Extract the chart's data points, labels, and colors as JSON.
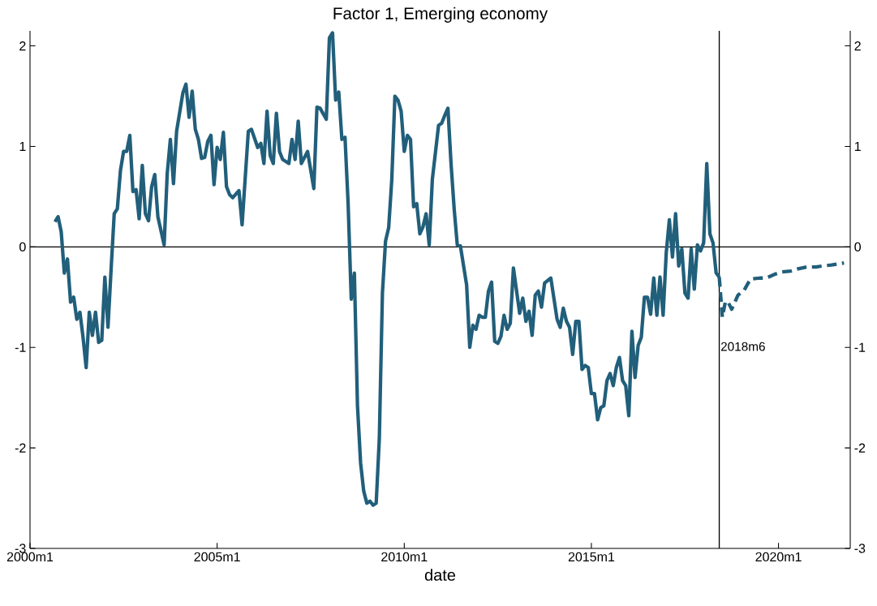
{
  "chart_data": {
    "type": "line",
    "title": "Factor 1, Emerging economy",
    "xlabel": "date",
    "xlim": [
      "2000-01",
      "2021-12"
    ],
    "ylim": [
      -3,
      2.15
    ],
    "y2lim": [
      -3,
      2.15
    ],
    "xticks": [
      {
        "value": "2000-01",
        "label": "2000m1"
      },
      {
        "value": "2005-01",
        "label": "2005m1"
      },
      {
        "value": "2010-01",
        "label": "2010m1"
      },
      {
        "value": "2015-01",
        "label": "2015m1"
      },
      {
        "value": "2020-01",
        "label": "2020m1"
      }
    ],
    "yticks": [
      -3,
      -2,
      -1,
      0,
      1,
      2
    ],
    "y2ticks": [
      -3,
      -2,
      -1,
      0,
      1,
      2
    ],
    "grid": false,
    "ref_lines": [
      {
        "axis": "y",
        "value": 0,
        "color": "#000000"
      },
      {
        "axis": "x",
        "value": "2018-06",
        "label": "2018m6",
        "color": "#000000"
      }
    ],
    "series": [
      {
        "color": "#215f7b",
        "line_style": "solid",
        "x": [
          "2000-09",
          "2000-10",
          "2000-11",
          "2000-12",
          "2001-01",
          "2001-02",
          "2001-03",
          "2001-04",
          "2001-05",
          "2001-06",
          "2001-07",
          "2001-08",
          "2001-09",
          "2001-10",
          "2001-11",
          "2001-12",
          "2002-01",
          "2002-02",
          "2002-03",
          "2002-04",
          "2002-05",
          "2002-06",
          "2002-07",
          "2002-08",
          "2002-09",
          "2002-10",
          "2002-11",
          "2002-12",
          "2003-01",
          "2003-02",
          "2003-03",
          "2003-04",
          "2003-05",
          "2003-06",
          "2003-08",
          "2003-09",
          "2003-10",
          "2003-11",
          "2003-12",
          "2004-01",
          "2004-02",
          "2004-03",
          "2004-04",
          "2004-05",
          "2004-06",
          "2004-07",
          "2004-08",
          "2004-09",
          "2004-10",
          "2004-11",
          "2004-12",
          "2005-01",
          "2005-02",
          "2005-03",
          "2005-04",
          "2005-05",
          "2005-06",
          "2005-08",
          "2005-09",
          "2005-11",
          "2005-12",
          "2006-02",
          "2006-03",
          "2006-04",
          "2006-05",
          "2006-06",
          "2006-07",
          "2006-08",
          "2006-09",
          "2006-10",
          "2006-12",
          "2007-01",
          "2007-02",
          "2007-03",
          "2007-04",
          "2007-06",
          "2007-08",
          "2007-09",
          "2007-10",
          "2007-12",
          "2008-01",
          "2008-02",
          "2008-03",
          "2008-04",
          "2008-05",
          "2008-06",
          "2008-07",
          "2008-08",
          "2008-09",
          "2008-10",
          "2008-11",
          "2008-12",
          "2009-01",
          "2009-02",
          "2009-03",
          "2009-04",
          "2009-05",
          "2009-06",
          "2009-07",
          "2009-08",
          "2009-09",
          "2009-10",
          "2009-11",
          "2009-12",
          "2010-01",
          "2010-02",
          "2010-03",
          "2010-04",
          "2010-05",
          "2010-06",
          "2010-07",
          "2010-08",
          "2010-09",
          "2010-10",
          "2010-12",
          "2011-01",
          "2011-02",
          "2011-03",
          "2011-04",
          "2011-05",
          "2011-06",
          "2011-07",
          "2011-09",
          "2011-10",
          "2011-11",
          "2011-12",
          "2012-01",
          "2012-02",
          "2012-03",
          "2012-04",
          "2012-05",
          "2012-06",
          "2012-07",
          "2012-08",
          "2012-09",
          "2012-10",
          "2012-11",
          "2012-12",
          "2013-02",
          "2013-03",
          "2013-04",
          "2013-05",
          "2013-06",
          "2013-07",
          "2013-08",
          "2013-09",
          "2013-10",
          "2013-12",
          "2014-02",
          "2014-03",
          "2014-04",
          "2014-05",
          "2014-06",
          "2014-07",
          "2014-08",
          "2014-09",
          "2014-10",
          "2014-11",
          "2014-12",
          "2015-01",
          "2015-02",
          "2015-03",
          "2015-04",
          "2015-05",
          "2015-06",
          "2015-07",
          "2015-08",
          "2015-09",
          "2015-10",
          "2015-11",
          "2015-12",
          "2016-01",
          "2016-02",
          "2016-03",
          "2016-04",
          "2016-05",
          "2016-06",
          "2016-07",
          "2016-08",
          "2016-09",
          "2016-10",
          "2016-11",
          "2016-12",
          "2017-01",
          "2017-02",
          "2017-03",
          "2017-04",
          "2017-05",
          "2017-06",
          "2017-07",
          "2017-08",
          "2017-09",
          "2017-10",
          "2017-11",
          "2017-12",
          "2018-01",
          "2018-02",
          "2018-03",
          "2018-04",
          "2018-05",
          "2018-06"
        ],
        "values": [
          0.25,
          0.3,
          0.15,
          -0.26,
          -0.12,
          -0.55,
          -0.5,
          -0.72,
          -0.65,
          -0.9,
          -1.2,
          -0.65,
          -0.88,
          -0.65,
          -0.95,
          -0.93,
          -0.3,
          -0.8,
          -0.22,
          0.33,
          0.38,
          0.76,
          0.95,
          0.95,
          1.11,
          0.55,
          0.57,
          0.28,
          0.81,
          0.33,
          0.26,
          0.6,
          0.72,
          0.3,
          0.02,
          0.73,
          1.07,
          0.63,
          1.15,
          1.34,
          1.53,
          1.62,
          1.29,
          1.55,
          1.17,
          1.07,
          0.88,
          0.89,
          1.05,
          1.11,
          0.62,
          0.99,
          0.87,
          1.14,
          0.6,
          0.52,
          0.49,
          0.56,
          0.22,
          1.15,
          1.17,
          0.99,
          1.03,
          0.83,
          1.35,
          0.91,
          0.83,
          1.33,
          0.95,
          0.87,
          0.83,
          1.07,
          0.87,
          1.25,
          0.83,
          0.95,
          0.58,
          1.39,
          1.38,
          1.27,
          2.08,
          2.13,
          1.46,
          1.54,
          1.07,
          1.09,
          0.43,
          -0.52,
          -0.26,
          -1.58,
          -2.15,
          -2.43,
          -2.55,
          -2.53,
          -2.57,
          -2.55,
          -1.91,
          -0.46,
          0.06,
          0.19,
          0.67,
          1.5,
          1.46,
          1.35,
          0.95,
          1.11,
          1.07,
          0.4,
          0.43,
          0.13,
          0.2,
          0.33,
          0.02,
          0.67,
          1.21,
          1.23,
          1.31,
          1.38,
          0.83,
          0.38,
          0.02,
          0.01,
          -0.38,
          -1.0,
          -0.78,
          -0.82,
          -0.68,
          -0.7,
          -0.7,
          -0.44,
          -0.35,
          -0.94,
          -0.96,
          -0.89,
          -0.68,
          -0.82,
          -0.76,
          -0.21,
          -0.66,
          -0.51,
          -0.74,
          -0.64,
          -0.88,
          -0.48,
          -0.44,
          -0.6,
          -0.36,
          -0.31,
          -0.72,
          -0.8,
          -0.61,
          -0.74,
          -0.8,
          -1.07,
          -0.74,
          -0.74,
          -1.22,
          -1.18,
          -1.2,
          -1.46,
          -1.46,
          -1.72,
          -1.6,
          -1.58,
          -1.33,
          -1.26,
          -1.38,
          -1.2,
          -1.1,
          -1.33,
          -1.38,
          -1.68,
          -0.84,
          -1.3,
          -0.98,
          -0.9,
          -0.5,
          -0.5,
          -0.67,
          -0.31,
          -0.68,
          -0.3,
          -0.68,
          -0.06,
          0.27,
          -0.1,
          0.33,
          -0.19,
          -0.02,
          -0.46,
          -0.51,
          -0.02,
          -0.42,
          0.02,
          -0.04,
          0.04,
          0.83,
          0.13,
          0.04,
          -0.26,
          -0.3
        ]
      },
      {
        "color": "#215f7b",
        "line_style": "dashed",
        "x": [
          "2018-06",
          "2018-07",
          "2018-08",
          "2018-09",
          "2018-10",
          "2018-12",
          "2019-02",
          "2019-04",
          "2019-07",
          "2019-09",
          "2019-12",
          "2020-02",
          "2020-05",
          "2020-07",
          "2020-10",
          "2021-01",
          "2021-03",
          "2021-06",
          "2021-10"
        ],
        "values": [
          -0.3,
          -0.7,
          -0.54,
          -0.56,
          -0.62,
          -0.48,
          -0.43,
          -0.32,
          -0.31,
          -0.31,
          -0.27,
          -0.25,
          -0.24,
          -0.22,
          -0.2,
          -0.2,
          -0.19,
          -0.18,
          -0.16
        ]
      }
    ]
  }
}
